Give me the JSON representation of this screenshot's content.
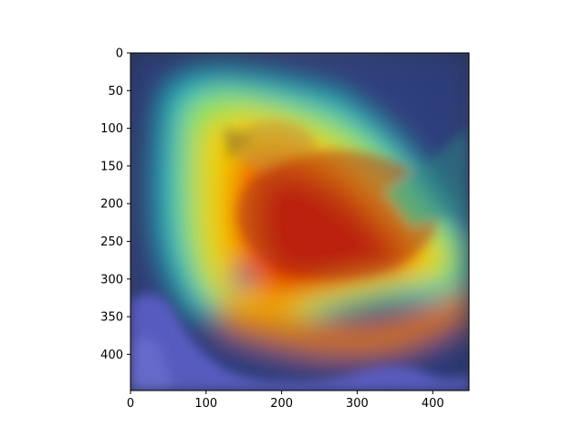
{
  "figure": {
    "subject": "bird-photo-with-attention-heatmap-overlay",
    "colormap": [
      "#00007f",
      "#0000ff",
      "#00a0ff",
      "#10ffe0",
      "#80ff70",
      "#ffe000",
      "#ff6a00",
      "#d40000"
    ]
  },
  "axes": {
    "x_range": [
      0,
      448
    ],
    "y_range": [
      448,
      0
    ],
    "x_ticks": [
      0,
      100,
      200,
      300,
      400
    ],
    "y_ticks": [
      0,
      50,
      100,
      150,
      200,
      250,
      300,
      350,
      400
    ],
    "x_tick_labels": [
      "0",
      "100",
      "200",
      "300",
      "400"
    ],
    "y_tick_labels": [
      "0",
      "50",
      "100",
      "150",
      "200",
      "250",
      "300",
      "350",
      "400"
    ],
    "colors": {
      "frame": "#000000",
      "background_photo": "#3e4a62"
    }
  }
}
